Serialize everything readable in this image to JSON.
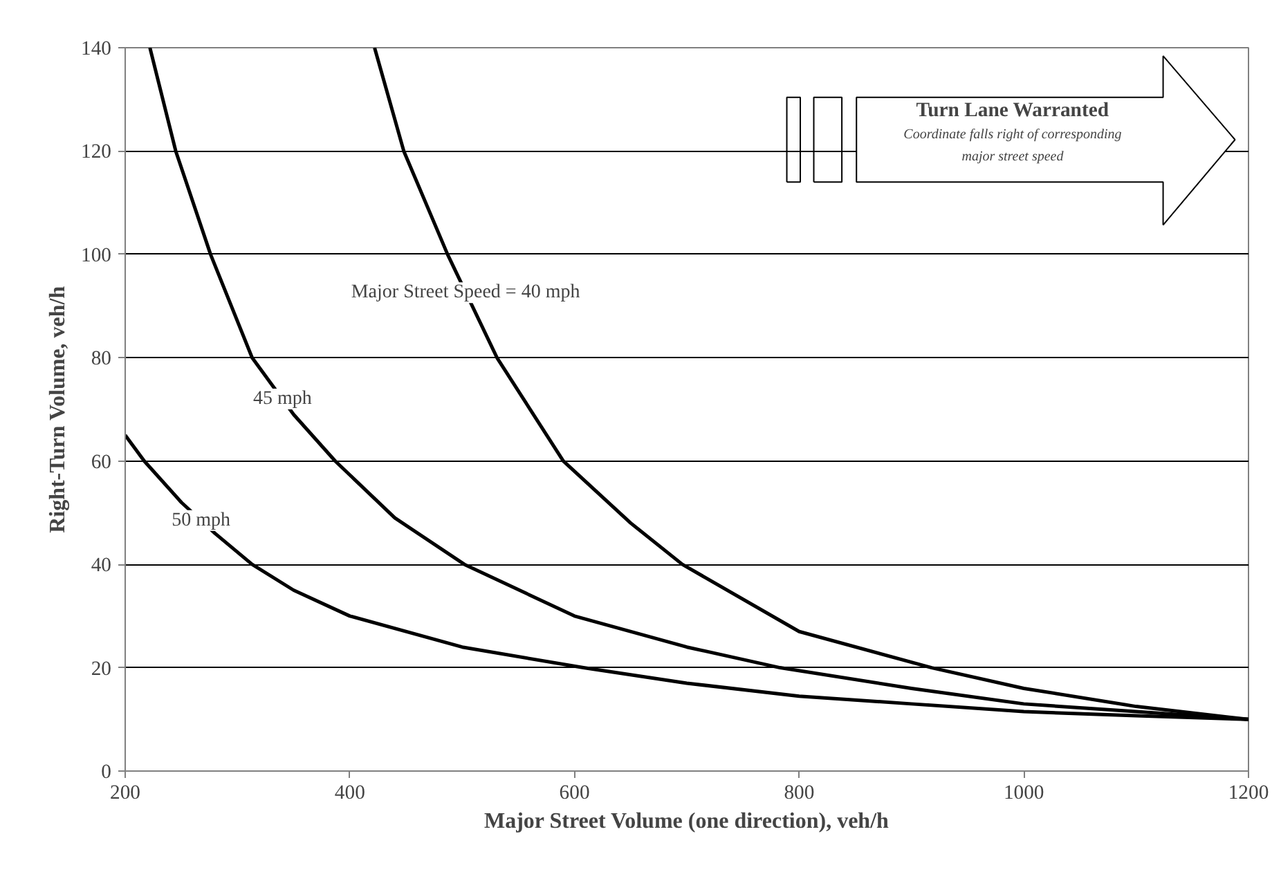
{
  "chart_data": {
    "type": "line",
    "xlabel": "Major Street Volume (one direction), veh/h",
    "ylabel": "Right-Turn Volume, veh/h",
    "xlim": [
      200,
      1200
    ],
    "xticks": [
      200,
      400,
      600,
      800,
      1000,
      1200
    ],
    "ylim": [
      0,
      140
    ],
    "yticks": [
      0,
      20,
      40,
      60,
      80,
      100,
      120,
      140
    ],
    "grid": "y",
    "marker": "none",
    "line_style": "solid",
    "series": [
      {
        "color": "#000000",
        "x": [
          422,
          448,
          487,
          531,
          590,
          650,
          696,
          800,
          918,
          1000,
          1100,
          1200
        ],
        "values": [
          140,
          120,
          100,
          80,
          60,
          48,
          40,
          27,
          20,
          16,
          12.5,
          10
        ]
      },
      {
        "color": "#000000",
        "x": [
          222,
          245,
          276,
          313,
          350,
          387,
          440,
          502,
          600,
          700,
          783,
          900,
          1000,
          1100,
          1200
        ],
        "values": [
          140,
          120,
          100,
          80,
          69,
          60,
          49,
          40,
          30,
          24,
          20,
          16,
          13,
          11.5,
          10
        ]
      },
      {
        "color": "#000000",
        "x": [
          200,
          217,
          250,
          280,
          313,
          350,
          400,
          500,
          608,
          700,
          800,
          900,
          1000,
          1100,
          1200
        ],
        "values": [
          65,
          60,
          52,
          46,
          40,
          35,
          30,
          24,
          20,
          17,
          14.5,
          13,
          11.5,
          10.7,
          10
        ]
      }
    ],
    "annotations": [
      {
        "text": "Major Street Speed = 40 mph",
        "x": 503,
        "y": 92.6
      },
      {
        "text": "45 mph",
        "x": 340,
        "y": 72
      },
      {
        "text": "50 mph",
        "x": 267.5,
        "y": 48.5
      },
      "Turn Lane Warranted",
      "Coordinate falls right of corresponding",
      "major street speed"
    ]
  }
}
